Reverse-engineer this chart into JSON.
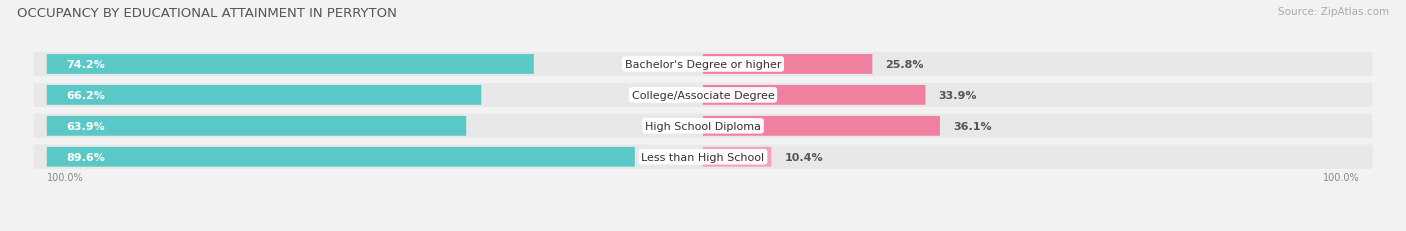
{
  "title": "OCCUPANCY BY EDUCATIONAL ATTAINMENT IN PERRYTON",
  "source": "Source: ZipAtlas.com",
  "categories": [
    "Less than High School",
    "High School Diploma",
    "College/Associate Degree",
    "Bachelor's Degree or higher"
  ],
  "owner_pct": [
    89.6,
    63.9,
    66.2,
    74.2
  ],
  "renter_pct": [
    10.4,
    36.1,
    33.9,
    25.8
  ],
  "owner_color": "#5BC8C8",
  "renter_color": "#F080A0",
  "renter_color_light": "#F4A0BE",
  "bg_color": "#f2f2f2",
  "row_bg_color": "#e8e8e8",
  "title_fontsize": 9.5,
  "label_fontsize": 8,
  "pct_fontsize": 8,
  "source_fontsize": 7.5,
  "legend_fontsize": 8,
  "axis_label": "100.0%"
}
